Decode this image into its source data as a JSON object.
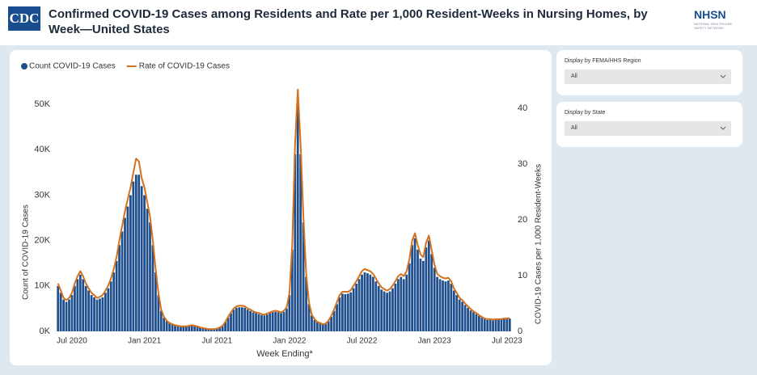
{
  "header": {
    "logo": "CDC",
    "title": "Confirmed COVID-19 Cases among Residents and Rate per 1,000 Resident-Weeks in Nursing Homes, by Week—United States",
    "right_logo": "NHSN",
    "right_logo_sub": "NATIONAL HEALTHCARE SAFETY NETWORK"
  },
  "filters": [
    {
      "label": "Display by FEMA/HHS Region",
      "value": "All"
    },
    {
      "label": "Display by State",
      "value": "All"
    }
  ],
  "chart_data": {
    "type": "bar",
    "x_label": "Week Ending*",
    "y_label": "Count of COVID-19 Cases",
    "y2_label": "COVID-19 Cases per 1,000 Resident-Weeks",
    "categories": [
      null,
      null,
      null,
      null,
      null,
      "Jul 2020",
      null,
      null,
      null,
      null,
      null,
      null,
      null,
      null,
      null,
      null,
      null,
      null,
      null,
      null,
      null,
      null,
      null,
      null,
      null,
      null,
      null,
      null,
      null,
      null,
      null,
      "Jan 2021",
      null,
      null,
      null,
      null,
      null,
      null,
      null,
      null,
      null,
      null,
      null,
      null,
      null,
      null,
      null,
      null,
      null,
      null,
      null,
      null,
      null,
      null,
      null,
      null,
      null,
      "Jul 2021",
      null,
      null,
      null,
      null,
      null,
      null,
      null,
      null,
      null,
      null,
      null,
      null,
      null,
      null,
      null,
      null,
      null,
      null,
      null,
      null,
      null,
      null,
      null,
      null,
      null,
      "Jan 2022",
      null,
      null,
      null,
      null,
      null,
      null,
      null,
      null,
      null,
      null,
      null,
      null,
      null,
      null,
      null,
      null,
      null,
      null,
      null,
      null,
      null,
      null,
      null,
      null,
      null,
      "Jul 2022",
      null,
      null,
      null,
      null,
      null,
      null,
      null,
      null,
      null,
      null,
      null,
      null,
      null,
      null,
      null,
      null,
      null,
      null,
      null,
      null,
      null,
      null,
      null,
      null,
      null,
      "Jan 2023",
      null,
      null,
      null,
      null,
      null,
      null,
      null,
      null,
      null,
      null,
      null,
      null,
      null,
      null,
      null,
      null,
      null,
      null,
      null,
      null,
      null,
      null,
      null,
      null,
      null,
      "Jul 2023",
      null
    ],
    "series": [
      {
        "name": "Count COVID-19 Cases",
        "type": "bar",
        "color": "#1f4e8c",
        "values": [
          10000,
          8500,
          7000,
          6500,
          7000,
          8000,
          10000,
          11500,
          12500,
          11500,
          10000,
          9000,
          8000,
          7500,
          7000,
          7200,
          7500,
          8500,
          9500,
          11000,
          13000,
          15500,
          19000,
          22000,
          25000,
          27500,
          30000,
          33000,
          34500,
          34500,
          32000,
          30000,
          27000,
          24000,
          19000,
          13000,
          8000,
          4500,
          3000,
          2200,
          1800,
          1500,
          1300,
          1200,
          1100,
          1000,
          1100,
          1200,
          1300,
          1200,
          1000,
          800,
          700,
          600,
          500,
          500,
          500,
          600,
          800,
          1200,
          2000,
          3000,
          4000,
          4800,
          5200,
          5300,
          5300,
          5200,
          4800,
          4500,
          4200,
          4000,
          3800,
          3600,
          3500,
          3700,
          4000,
          4200,
          4300,
          4200,
          4000,
          4300,
          5000,
          8000,
          18000,
          39000,
          50500,
          39000,
          24000,
          12000,
          6000,
          3500,
          2500,
          2000,
          1700,
          1500,
          1600,
          2200,
          3200,
          4500,
          6000,
          7500,
          8300,
          8200,
          8300,
          8600,
          9500,
          10500,
          11500,
          12500,
          13000,
          12800,
          12500,
          12000,
          11000,
          10000,
          9200,
          8800,
          8500,
          8800,
          9500,
          10500,
          11500,
          12000,
          11500,
          12500,
          15000,
          19000,
          20500,
          18000,
          16000,
          15500,
          18500,
          20000,
          17000,
          14000,
          12000,
          11500,
          11200,
          11000,
          11200,
          10500,
          9000,
          8000,
          7000,
          6500,
          5800,
          5200,
          4600,
          4200,
          3800,
          3400,
          3000,
          2700,
          2500,
          2500,
          2400,
          2500,
          2600,
          2600,
          2700,
          2700,
          2800
        ]
      },
      {
        "name": "Rate of COVID-19 Cases",
        "type": "line",
        "axis": "y2",
        "color": "#d4711c",
        "values": [
          8.6,
          7.3,
          6.0,
          5.6,
          6.0,
          6.9,
          8.6,
          9.9,
          10.8,
          9.9,
          8.6,
          7.7,
          6.9,
          6.5,
          6.0,
          6.2,
          6.5,
          7.3,
          8.2,
          9.5,
          11.2,
          13.3,
          16.3,
          18.9,
          21.5,
          23.7,
          25.8,
          28.4,
          31.0,
          30.5,
          27.5,
          25.8,
          23.2,
          20.6,
          16.3,
          11.2,
          6.9,
          3.9,
          2.6,
          1.9,
          1.5,
          1.3,
          1.1,
          1.0,
          0.9,
          0.9,
          0.9,
          1.0,
          1.1,
          1.0,
          0.9,
          0.7,
          0.6,
          0.5,
          0.4,
          0.4,
          0.4,
          0.5,
          0.7,
          1.0,
          1.7,
          2.6,
          3.4,
          4.1,
          4.5,
          4.6,
          4.6,
          4.5,
          4.1,
          3.9,
          3.6,
          3.4,
          3.3,
          3.1,
          3.0,
          3.2,
          3.4,
          3.6,
          3.7,
          3.6,
          3.4,
          3.7,
          4.3,
          6.9,
          15.5,
          33.5,
          43.4,
          33.5,
          20.6,
          10.3,
          5.2,
          3.0,
          2.2,
          1.7,
          1.5,
          1.3,
          1.4,
          1.9,
          2.8,
          3.9,
          5.2,
          6.5,
          7.1,
          7.1,
          7.1,
          7.4,
          8.2,
          9.0,
          9.9,
          10.8,
          11.2,
          11.0,
          10.8,
          10.3,
          9.5,
          8.6,
          7.9,
          7.6,
          7.3,
          7.6,
          8.2,
          9.0,
          9.9,
          10.3,
          9.9,
          10.8,
          12.9,
          16.3,
          17.6,
          15.5,
          13.8,
          13.3,
          15.9,
          17.2,
          14.6,
          12.0,
          10.3,
          9.9,
          9.6,
          9.5,
          9.6,
          9.0,
          7.7,
          6.9,
          6.0,
          5.6,
          5.0,
          4.5,
          4.0,
          3.6,
          3.3,
          2.9,
          2.6,
          2.3,
          2.2,
          2.2,
          2.1,
          2.2,
          2.2,
          2.2,
          2.3,
          2.3,
          2.4
        ]
      }
    ],
    "ylim": [
      0,
      53400
    ],
    "yticks": [
      {
        "value": 0,
        "label": "0K"
      },
      {
        "value": 10000,
        "label": "10K"
      },
      {
        "value": 20000,
        "label": "20K"
      },
      {
        "value": 30000,
        "label": "30K"
      },
      {
        "value": 40000,
        "label": "40K"
      },
      {
        "value": 50000,
        "label": "50K"
      }
    ],
    "y2lim": [
      0,
      43.5
    ],
    "y2ticks": [
      0,
      10,
      20,
      30,
      40
    ],
    "legend": "top-left",
    "grid": false
  }
}
